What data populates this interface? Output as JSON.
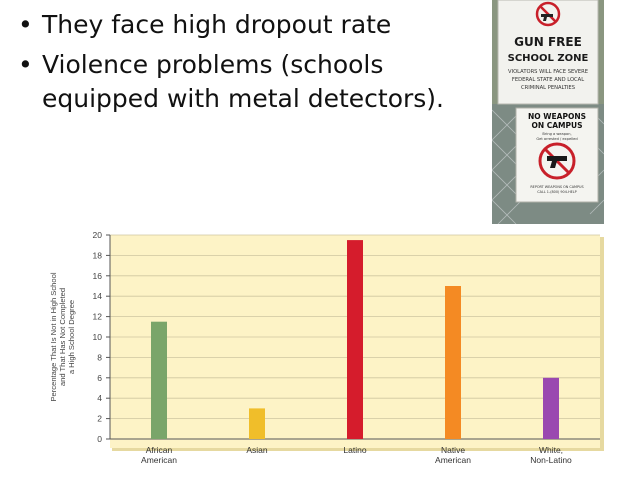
{
  "bullets": [
    "They face high dropout rate",
    "Violence problems (schools equipped with metal detectors)."
  ],
  "sign_top": {
    "line1": "GUN FREE",
    "line2": "SCHOOL ZONE",
    "small": [
      "VIOLATORS WILL FACE SEVERE",
      "FEDERAL STATE AND LOCAL",
      "CRIMINAL PENALTIES"
    ]
  },
  "sign_bottom": {
    "line1": "NO WEAPONS",
    "line2": "ON CAMPUS",
    "small1": "Bring a weapon,",
    "small2": "Get arrested / expelled",
    "footer1": "REPORT WEAPONS ON CAMPUS",
    "footer2": "CALL 1-(800) 904-HELP"
  },
  "chart_data": {
    "type": "bar",
    "categories": [
      "African\nAmerican",
      "Asian",
      "Latino",
      "Native\nAmerican",
      "White,\nNon-Latino"
    ],
    "values": [
      11.5,
      3,
      19.5,
      15,
      6
    ],
    "colors": [
      "#7aa56a",
      "#f0be2a",
      "#d51c2c",
      "#f48a23",
      "#9a48b0"
    ],
    "ylabel": "Percentage That Is Not in High School and That Has Not Completed a High School Degree",
    "ylim": [
      0,
      20
    ],
    "yticks": [
      0,
      2,
      4,
      6,
      8,
      10,
      12,
      14,
      16,
      18,
      20
    ],
    "plot_background": "#fdf3c6",
    "grid": true
  }
}
